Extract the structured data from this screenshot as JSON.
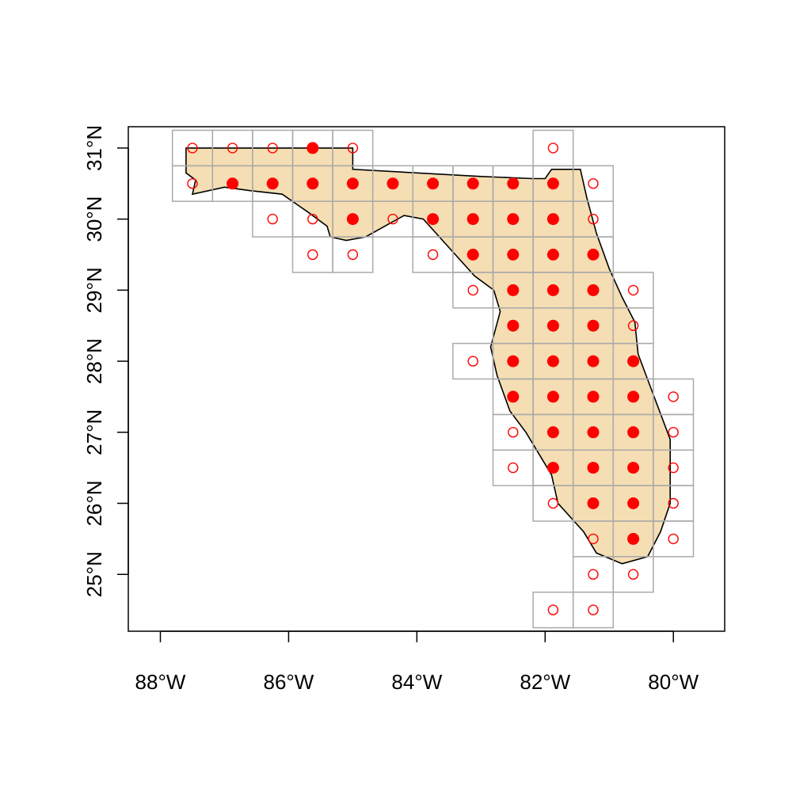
{
  "map": {
    "x_axis": {
      "range": [
        -88.5,
        -79.2
      ],
      "ticks": [
        {
          "value": -88,
          "label": "88°W"
        },
        {
          "value": -86,
          "label": "86°W"
        },
        {
          "value": -84,
          "label": "84°W"
        },
        {
          "value": -82,
          "label": "82°W"
        },
        {
          "value": -80,
          "label": "80°W"
        }
      ]
    },
    "y_axis": {
      "range": [
        24.2,
        31.3
      ],
      "ticks": [
        {
          "value": 25,
          "label": "25°N"
        },
        {
          "value": 26,
          "label": "26°N"
        },
        {
          "value": 27,
          "label": "27°N"
        },
        {
          "value": 28,
          "label": "28°N"
        },
        {
          "value": 29,
          "label": "29°N"
        },
        {
          "value": 30,
          "label": "30°N"
        },
        {
          "value": 31,
          "label": "31°N"
        }
      ]
    },
    "grid": {
      "lon_origin": -87.5,
      "lon_step": 0.625,
      "lat_step": 0.5
    },
    "colors": {
      "land_fill": "#f5deb3",
      "coast_stroke": "#000000",
      "cell_stroke": "#aaaaaa",
      "point": "#ff0000"
    },
    "rows": [
      {
        "lat": 31.0,
        "cells": [
          {
            "i": 0,
            "s": "o"
          },
          {
            "i": 1,
            "s": "o"
          },
          {
            "i": 2,
            "s": "o"
          },
          {
            "i": 3,
            "s": "f"
          },
          {
            "i": 4,
            "s": "o"
          },
          {
            "i": 9,
            "s": "o"
          }
        ]
      },
      {
        "lat": 30.5,
        "cells": [
          {
            "i": 0,
            "s": "o"
          },
          {
            "i": 1,
            "s": "f"
          },
          {
            "i": 2,
            "s": "f"
          },
          {
            "i": 3,
            "s": "f"
          },
          {
            "i": 4,
            "s": "f"
          },
          {
            "i": 5,
            "s": "f"
          },
          {
            "i": 6,
            "s": "f"
          },
          {
            "i": 7,
            "s": "f"
          },
          {
            "i": 8,
            "s": "f"
          },
          {
            "i": 9,
            "s": "f"
          },
          {
            "i": 10,
            "s": "o"
          }
        ]
      },
      {
        "lat": 30.0,
        "cells": [
          {
            "i": 2,
            "s": "o"
          },
          {
            "i": 3,
            "s": "o"
          },
          {
            "i": 4,
            "s": "f"
          },
          {
            "i": 5,
            "s": "o"
          },
          {
            "i": 6,
            "s": "f"
          },
          {
            "i": 7,
            "s": "f"
          },
          {
            "i": 8,
            "s": "f"
          },
          {
            "i": 9,
            "s": "f"
          },
          {
            "i": 10,
            "s": "o"
          }
        ]
      },
      {
        "lat": 29.5,
        "cells": [
          {
            "i": 3,
            "s": "o"
          },
          {
            "i": 4,
            "s": "o"
          },
          {
            "i": 6,
            "s": "o"
          },
          {
            "i": 7,
            "s": "f"
          },
          {
            "i": 8,
            "s": "f"
          },
          {
            "i": 9,
            "s": "f"
          },
          {
            "i": 10,
            "s": "f"
          }
        ]
      },
      {
        "lat": 29.0,
        "cells": [
          {
            "i": 7,
            "s": "o"
          },
          {
            "i": 8,
            "s": "f"
          },
          {
            "i": 9,
            "s": "f"
          },
          {
            "i": 10,
            "s": "f"
          },
          {
            "i": 11,
            "s": "o"
          }
        ]
      },
      {
        "lat": 28.5,
        "cells": [
          {
            "i": 8,
            "s": "f"
          },
          {
            "i": 9,
            "s": "f"
          },
          {
            "i": 10,
            "s": "f"
          },
          {
            "i": 11,
            "s": "o"
          }
        ]
      },
      {
        "lat": 28.0,
        "cells": [
          {
            "i": 7,
            "s": "o"
          },
          {
            "i": 8,
            "s": "f"
          },
          {
            "i": 9,
            "s": "f"
          },
          {
            "i": 10,
            "s": "f"
          },
          {
            "i": 11,
            "s": "f"
          }
        ]
      },
      {
        "lat": 27.5,
        "cells": [
          {
            "i": 8,
            "s": "f"
          },
          {
            "i": 9,
            "s": "f"
          },
          {
            "i": 10,
            "s": "f"
          },
          {
            "i": 11,
            "s": "f"
          },
          {
            "i": 12,
            "s": "o"
          }
        ]
      },
      {
        "lat": 27.0,
        "cells": [
          {
            "i": 8,
            "s": "o"
          },
          {
            "i": 9,
            "s": "f"
          },
          {
            "i": 10,
            "s": "f"
          },
          {
            "i": 11,
            "s": "f"
          },
          {
            "i": 12,
            "s": "o"
          }
        ]
      },
      {
        "lat": 26.5,
        "cells": [
          {
            "i": 8,
            "s": "o"
          },
          {
            "i": 9,
            "s": "f"
          },
          {
            "i": 10,
            "s": "f"
          },
          {
            "i": 11,
            "s": "f"
          },
          {
            "i": 12,
            "s": "o"
          }
        ]
      },
      {
        "lat": 26.0,
        "cells": [
          {
            "i": 9,
            "s": "o"
          },
          {
            "i": 10,
            "s": "f"
          },
          {
            "i": 11,
            "s": "f"
          },
          {
            "i": 12,
            "s": "o"
          }
        ]
      },
      {
        "lat": 25.5,
        "cells": [
          {
            "i": 10,
            "s": "o"
          },
          {
            "i": 11,
            "s": "f"
          },
          {
            "i": 12,
            "s": "o"
          }
        ]
      },
      {
        "lat": 25.0,
        "cells": [
          {
            "i": 10,
            "s": "o"
          },
          {
            "i": 11,
            "s": "o"
          }
        ]
      },
      {
        "lat": 24.5,
        "cells": [
          {
            "i": 9,
            "s": "o"
          },
          {
            "i": 10,
            "s": "o"
          }
        ]
      }
    ],
    "coastline": [
      [
        -87.6,
        31.0
      ],
      [
        -85.0,
        31.0
      ],
      [
        -85.0,
        30.7
      ],
      [
        -83.0,
        30.6
      ],
      [
        -82.2,
        30.57
      ],
      [
        -82.0,
        30.57
      ],
      [
        -81.9,
        30.7
      ],
      [
        -81.45,
        30.7
      ],
      [
        -81.35,
        30.3
      ],
      [
        -81.2,
        29.8
      ],
      [
        -81.0,
        29.3
      ],
      [
        -80.8,
        28.9
      ],
      [
        -80.6,
        28.55
      ],
      [
        -80.55,
        28.1
      ],
      [
        -80.3,
        27.5
      ],
      [
        -80.05,
        26.9
      ],
      [
        -80.05,
        26.0
      ],
      [
        -80.2,
        25.6
      ],
      [
        -80.4,
        25.25
      ],
      [
        -80.8,
        25.15
      ],
      [
        -81.2,
        25.3
      ],
      [
        -81.4,
        25.6
      ],
      [
        -81.8,
        26.0
      ],
      [
        -81.9,
        26.4
      ],
      [
        -82.1,
        26.7
      ],
      [
        -82.3,
        27.0
      ],
      [
        -82.55,
        27.3
      ],
      [
        -82.75,
        27.8
      ],
      [
        -82.85,
        28.2
      ],
      [
        -82.7,
        28.7
      ],
      [
        -82.8,
        29.0
      ],
      [
        -83.1,
        29.2
      ],
      [
        -83.5,
        29.6
      ],
      [
        -83.9,
        30.0
      ],
      [
        -84.2,
        30.05
      ],
      [
        -84.4,
        29.95
      ],
      [
        -84.8,
        29.75
      ],
      [
        -85.1,
        29.7
      ],
      [
        -85.35,
        29.75
      ],
      [
        -85.4,
        29.9
      ],
      [
        -85.7,
        30.1
      ],
      [
        -86.1,
        30.35
      ],
      [
        -86.6,
        30.4
      ],
      [
        -87.0,
        30.45
      ],
      [
        -87.5,
        30.35
      ],
      [
        -87.45,
        30.55
      ],
      [
        -87.6,
        30.65
      ],
      [
        -87.6,
        31.0
      ]
    ]
  }
}
